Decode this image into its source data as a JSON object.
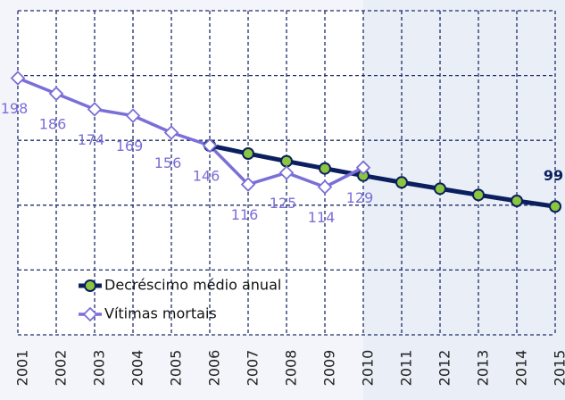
{
  "chart_data": {
    "type": "line",
    "categories": [
      "2001",
      "2002",
      "2003",
      "2004",
      "2005",
      "2006",
      "2007",
      "2008",
      "2009",
      "2010",
      "2011",
      "2012",
      "2013",
      "2014",
      "2015"
    ],
    "series": [
      {
        "name": "Decréscimo médio anual",
        "color": "#0b1f5e",
        "marker_color": "#8cc63e",
        "marker": "circle",
        "data_labels": "last",
        "values": [
          null,
          null,
          null,
          null,
          null,
          146,
          139.8,
          133.9,
          128.3,
          122.8,
          117.6,
          112.7,
          107.9,
          103.3,
          99
        ]
      },
      {
        "name": "Vítimas mortais",
        "color": "#7a6fd8",
        "marker_color": "#ffffff",
        "marker": "diamond",
        "data_labels": "all",
        "values": [
          198,
          186,
          174,
          169,
          156,
          146,
          116,
          125,
          114,
          129,
          null,
          null,
          null,
          null,
          null
        ]
      }
    ],
    "ylim": [
      0,
      250
    ],
    "yticks": [
      0,
      50,
      100,
      150,
      200,
      250
    ],
    "grid": true,
    "legend": "lower left"
  }
}
